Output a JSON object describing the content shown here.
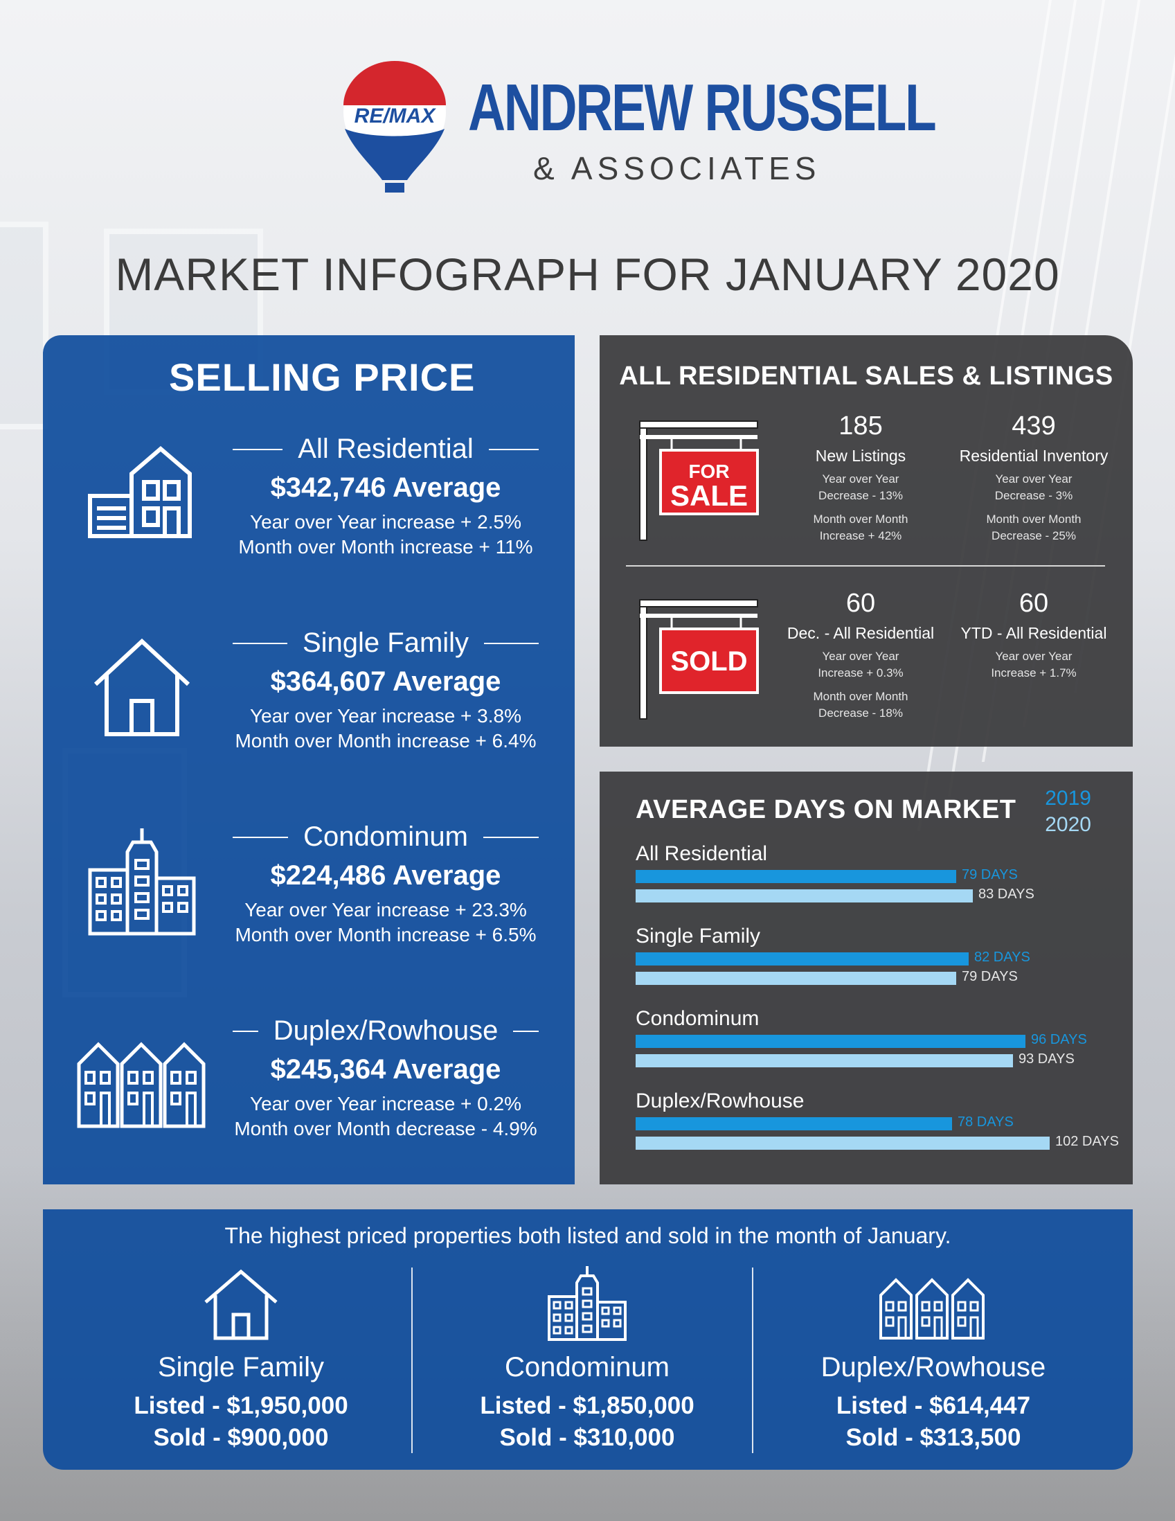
{
  "header": {
    "logo_text": "RE/MAX",
    "brand_name": "ANDREW RUSSELL",
    "brand_sub": "& ASSOCIATES",
    "title": "MARKET INFOGRAPH FOR JANUARY 2020"
  },
  "colors": {
    "brand_blue": "#1d4fa0",
    "panel_blue": "#0e4c9c",
    "panel_dark": "#3a3a3c",
    "bar_2019": "#1896dd",
    "bar_2020": "#a5d8f4",
    "sign_red": "#e0242b"
  },
  "selling_price": {
    "title": "SELLING PRICE",
    "items": [
      {
        "label": "All Residential",
        "average": "$342,746 Average",
        "yoy": "Year over Year increase + 2.5%",
        "mom": "Month over Month increase + 11%",
        "icon": "residential-building-icon"
      },
      {
        "label": "Single Family",
        "average": "$364,607 Average",
        "yoy": "Year over Year increase + 3.8%",
        "mom": "Month over Month increase + 6.4%",
        "icon": "house-icon"
      },
      {
        "label": "Condominum",
        "average": "$224,486 Average",
        "yoy": "Year over Year increase + 23.3%",
        "mom": "Month over Month increase + 6.5%",
        "icon": "condo-tower-icon"
      },
      {
        "label": "Duplex/Rowhouse",
        "average": "$245,364 Average",
        "yoy": "Year over Year increase + 0.2%",
        "mom": "Month over Month decrease - 4.9%",
        "icon": "rowhouse-icon"
      }
    ]
  },
  "sales_listings": {
    "title": "ALL RESIDENTIAL SALES & LISTINGS",
    "for_sale_sign": {
      "line1": "FOR",
      "line2": "SALE"
    },
    "sold_sign": {
      "text": "SOLD"
    },
    "stats": [
      {
        "number": "185",
        "label": "New Listings",
        "lines": [
          "Year over Year",
          "Decrease - 13%",
          "Month over Month",
          "Increase + 42%"
        ]
      },
      {
        "number": "439",
        "label": "Residential Inventory",
        "lines": [
          "Year over Year",
          "Decrease - 3%",
          "Month over Month",
          "Decrease - 25%"
        ]
      },
      {
        "number": "60",
        "label": "Dec. - All Residential",
        "lines": [
          "Year over Year",
          "Increase + 0.3%",
          "Month over Month",
          "Decrease - 18%"
        ]
      },
      {
        "number": "60",
        "label": "YTD - All Residential",
        "lines": [
          "Year over Year",
          "Increase + 1.7%"
        ]
      }
    ]
  },
  "chart_data": {
    "type": "bar",
    "title": "AVERAGE DAYS ON MARKET",
    "orientation": "horizontal",
    "categories": [
      "All Residential",
      "Single Family",
      "Condominum",
      "Duplex/Rowhouse"
    ],
    "series": [
      {
        "name": "2019",
        "values": [
          79,
          82,
          96,
          78
        ],
        "labels": [
          "79 DAYS",
          "82 DAYS",
          "96 DAYS",
          "78 DAYS"
        ]
      },
      {
        "name": "2020",
        "values": [
          83,
          79,
          93,
          102
        ],
        "labels": [
          "83 DAYS",
          "79 DAYS",
          "93 DAYS",
          "102 DAYS"
        ]
      }
    ],
    "legend": "top-right",
    "xlim": [
      0,
      102
    ],
    "grid": false
  },
  "highest_priced": {
    "title": "The highest priced properties both listed and sold in the month of January.",
    "items": [
      {
        "name": "Single Family",
        "listed": "Listed - $1,950,000",
        "sold": "Sold - $900,000",
        "icon": "house-icon"
      },
      {
        "name": "Condominum",
        "listed": "Listed - $1,850,000",
        "sold": "Sold - $310,000",
        "icon": "condo-tower-icon"
      },
      {
        "name": "Duplex/Rowhouse",
        "listed": "Listed - $614,447",
        "sold": "Sold - $313,500",
        "icon": "rowhouse-icon"
      }
    ]
  }
}
